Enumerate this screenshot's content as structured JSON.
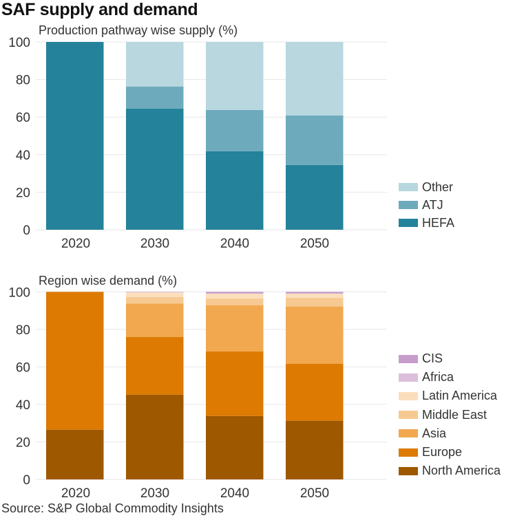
{
  "title": "SAF supply and demand",
  "source": "Source: S&P Global Commodity Insights",
  "chart_data": [
    {
      "type": "bar",
      "stacked": true,
      "title": "Production pathway wise supply (%)",
      "xlabel": "",
      "ylabel": "",
      "ylim": [
        0,
        100
      ],
      "yticks": [
        0,
        20,
        40,
        60,
        80,
        100
      ],
      "grid": true,
      "legend_position": "right",
      "categories": [
        "2020",
        "2030",
        "2040",
        "2050"
      ],
      "series": [
        {
          "name": "HEFA",
          "color": "#24829b",
          "values": [
            100,
            64.5,
            41.8,
            34.5
          ]
        },
        {
          "name": "ATJ",
          "color": "#6daabc",
          "values": [
            0,
            11.8,
            22.0,
            26.3
          ]
        },
        {
          "name": "Other",
          "color": "#b8d7df",
          "values": [
            0,
            23.7,
            36.2,
            39.2
          ]
        }
      ],
      "legend_order": [
        "Other",
        "ATJ",
        "HEFA"
      ]
    },
    {
      "type": "bar",
      "stacked": true,
      "title": "Region wise demand (%)",
      "xlabel": "",
      "ylabel": "",
      "ylim": [
        0,
        100
      ],
      "yticks": [
        0,
        20,
        40,
        60,
        80,
        100
      ],
      "grid": true,
      "legend_position": "right",
      "categories": [
        "2020",
        "2030",
        "2040",
        "2050"
      ],
      "series": [
        {
          "name": "North America",
          "color": "#9e5800",
          "values": [
            26.5,
            45.2,
            33.8,
            31.3
          ]
        },
        {
          "name": "Europe",
          "color": "#dc7a02",
          "values": [
            73.5,
            30.7,
            34.4,
            30.3
          ]
        },
        {
          "name": "Asia",
          "color": "#f1a84f",
          "values": [
            0,
            17.9,
            24.7,
            30.6
          ]
        },
        {
          "name": "Middle East",
          "color": "#f7c992",
          "values": [
            0,
            3.4,
            3.5,
            4.6
          ]
        },
        {
          "name": "Latin America",
          "color": "#fbdfbd",
          "values": [
            0,
            2.5,
            2.6,
            2.2
          ]
        },
        {
          "name": "Africa",
          "color": "#dcbedc",
          "values": [
            0,
            0.1,
            0.2,
            0.2
          ]
        },
        {
          "name": "CIS",
          "color": "#c79dcb",
          "values": [
            0,
            0.2,
            0.8,
            0.8
          ]
        }
      ],
      "legend_order": [
        "CIS",
        "Africa",
        "Latin America",
        "Middle East",
        "Asia",
        "Europe",
        "North America"
      ]
    }
  ]
}
